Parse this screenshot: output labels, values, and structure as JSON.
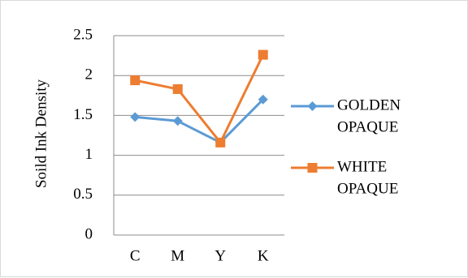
{
  "chart_data": {
    "type": "line",
    "categories": [
      "C",
      "M",
      "Y",
      "K"
    ],
    "series": [
      {
        "name": "GOLDEN OPAQUE",
        "name_lines": [
          "GOLDEN",
          "OPAQUE"
        ],
        "values": [
          1.48,
          1.43,
          1.16,
          1.7
        ],
        "color": "#5B9BD5",
        "marker": "diamond"
      },
      {
        "name": "WHITE OPAQUE",
        "name_lines": [
          "WHITE",
          "OPAQUE"
        ],
        "values": [
          1.94,
          1.83,
          1.16,
          2.26
        ],
        "color": "#ED7D31",
        "marker": "square"
      }
    ],
    "ylabel": "Soild Ink Density",
    "ylim": [
      0,
      2.5
    ],
    "yticks": [
      "0",
      "0.5",
      "1",
      "1.5",
      "2",
      "2.5"
    ],
    "grid": true,
    "legend": "right"
  }
}
